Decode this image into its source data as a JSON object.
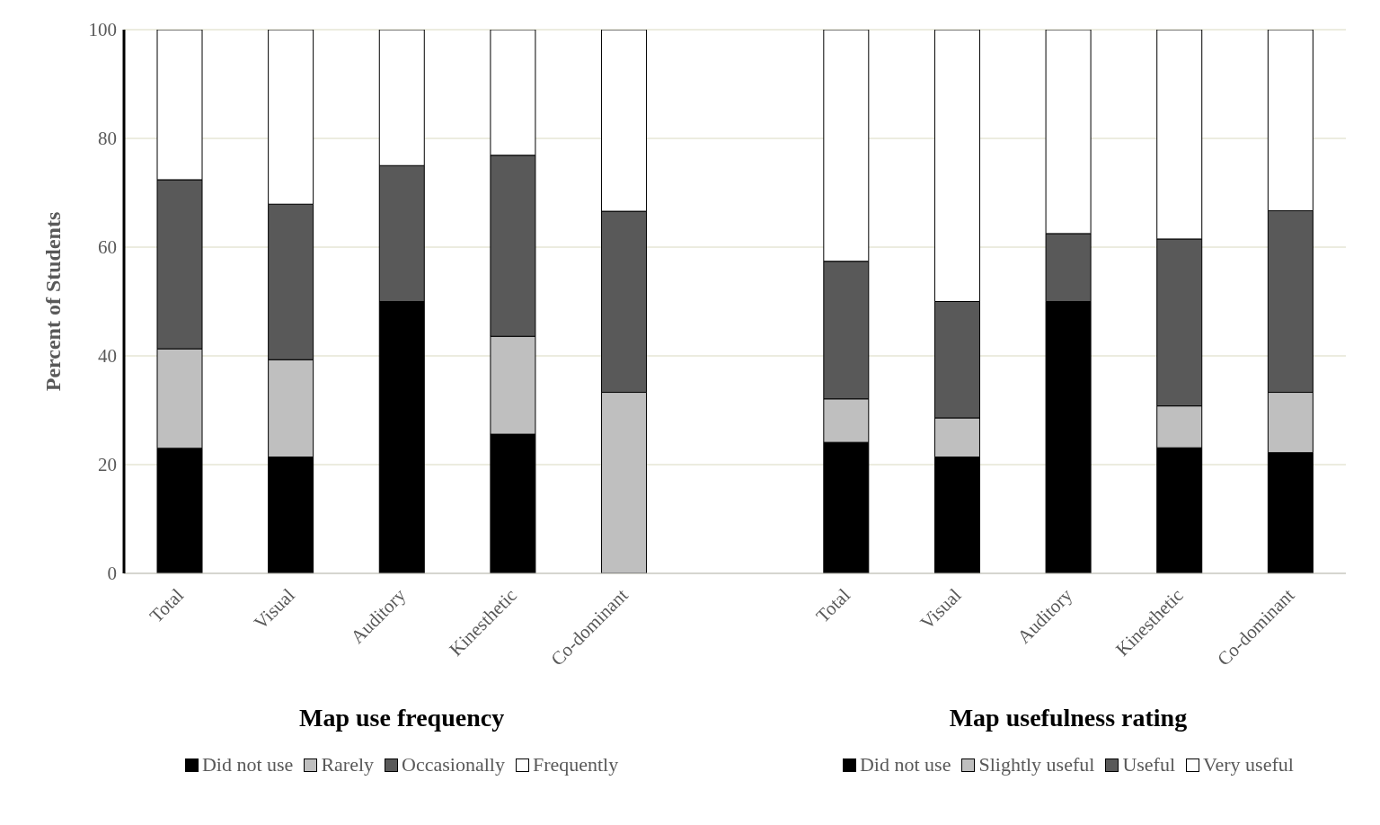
{
  "chart_data": {
    "type": "bar",
    "stacked": true,
    "ylabel": "Percent of Students",
    "categories": [
      "Total",
      "Visual",
      "Auditory",
      "Kinesthetic",
      "Co-dominant",
      null,
      "Total",
      "Visual",
      "Auditory",
      "Kinesthetic",
      "Co-dominant"
    ],
    "series": [
      {
        "name": "Did not use",
        "color": "#000000",
        "values": [
          23,
          21.4,
          50,
          25.6,
          0,
          null,
          null,
          null,
          null,
          null,
          null
        ]
      },
      {
        "name": "Rarely",
        "color": "#bfbfbf",
        "values": [
          18.3,
          17.9,
          0,
          18,
          33.3,
          null,
          null,
          null,
          null,
          null,
          null
        ]
      },
      {
        "name": "Occasionally",
        "color": "#595959",
        "values": [
          31.1,
          28.6,
          25,
          33.3,
          33.3,
          null,
          null,
          null,
          null,
          null,
          null
        ]
      },
      {
        "name": "Frequently",
        "color": "#ffffff",
        "values": [
          27.6,
          32.1,
          25,
          23.1,
          33.4,
          null,
          null,
          null,
          null,
          null,
          null
        ]
      },
      {
        "name": "Did not use",
        "color": "#000000",
        "values": [
          null,
          null,
          null,
          null,
          null,
          null,
          24.1,
          21.4,
          50,
          23.1,
          22.2
        ]
      },
      {
        "name": "Slightly useful",
        "color": "#bfbfbf",
        "values": [
          null,
          null,
          null,
          null,
          null,
          null,
          8,
          7.2,
          0,
          7.7,
          11.1
        ]
      },
      {
        "name": "Useful",
        "color": "#595959",
        "values": [
          null,
          null,
          null,
          null,
          null,
          null,
          25.3,
          21.4,
          12.5,
          30.7,
          33.4
        ]
      },
      {
        "name": "Very useful",
        "color": "#ffffff",
        "values": [
          null,
          null,
          null,
          null,
          null,
          null,
          42.6,
          50,
          37.5,
          38.5,
          33.3
        ]
      }
    ],
    "annotations": [
      "Map use frequency",
      "Map usefulness rating"
    ],
    "ylim": [
      0,
      100
    ],
    "yticks": [
      0,
      20,
      40,
      60,
      80,
      100
    ],
    "grid": "y",
    "legend": "bottom"
  }
}
